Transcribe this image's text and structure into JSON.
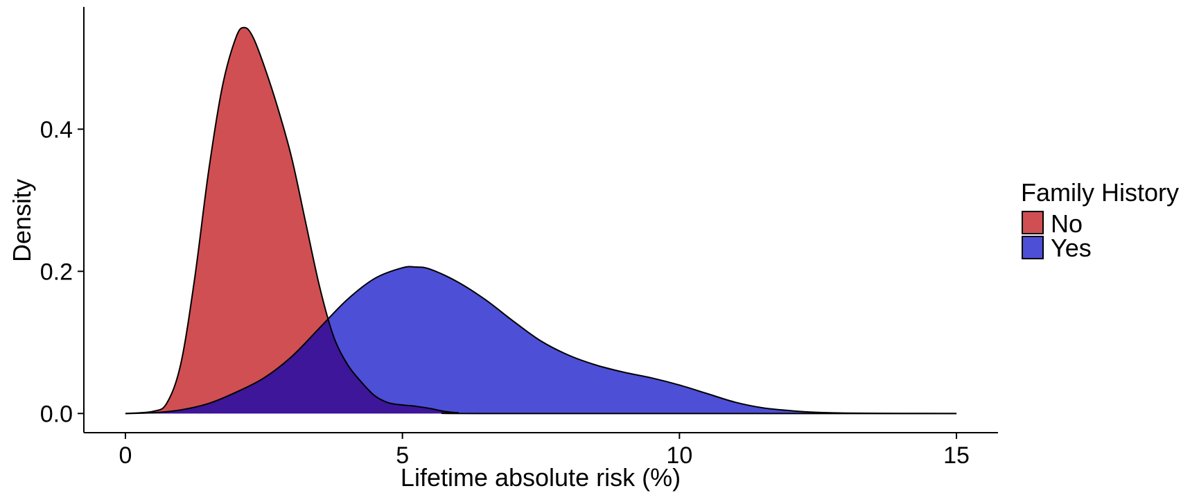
{
  "chart_data": {
    "type": "area",
    "title": "",
    "xlabel": "Lifetime absolute risk (%)",
    "ylabel": "Density",
    "xlim": [
      -0.75,
      15.75
    ],
    "ylim": [
      -0.027,
      0.572
    ],
    "x_ticks": [
      0,
      5,
      10,
      15
    ],
    "x_tick_labels": [
      "0",
      "5",
      "10",
      "15"
    ],
    "y_ticks": [
      0.0,
      0.2,
      0.4
    ],
    "y_tick_labels": [
      "0.0",
      "0.2",
      "0.4"
    ],
    "grid": false,
    "legend": {
      "title": "Family History",
      "placement": "right",
      "entries": [
        "No",
        "Yes"
      ]
    },
    "overlap_color": "#3d1699",
    "series": [
      {
        "name": "No",
        "color": "#d04f52",
        "points": [
          [
            0,
            0
          ],
          [
            0.5,
            0.003
          ],
          [
            0.75,
            0.015
          ],
          [
            1.0,
            0.07
          ],
          [
            1.25,
            0.19
          ],
          [
            1.5,
            0.34
          ],
          [
            1.75,
            0.46
          ],
          [
            2.0,
            0.53
          ],
          [
            2.15,
            0.543
          ],
          [
            2.3,
            0.53
          ],
          [
            2.5,
            0.49
          ],
          [
            2.75,
            0.43
          ],
          [
            3.0,
            0.36
          ],
          [
            3.25,
            0.27
          ],
          [
            3.5,
            0.18
          ],
          [
            3.75,
            0.11
          ],
          [
            4.0,
            0.07
          ],
          [
            4.25,
            0.045
          ],
          [
            4.5,
            0.025
          ],
          [
            4.75,
            0.015
          ],
          [
            5.0,
            0.012
          ],
          [
            5.25,
            0.01
          ],
          [
            5.5,
            0.007
          ],
          [
            5.75,
            0.003
          ],
          [
            6.0,
            0.001
          ],
          [
            6.5,
            0
          ],
          [
            15,
            0
          ]
        ]
      },
      {
        "name": "Yes",
        "color": "#4d4fd6",
        "points": [
          [
            0,
            0
          ],
          [
            0.5,
            0.001
          ],
          [
            1.0,
            0.005
          ],
          [
            1.5,
            0.014
          ],
          [
            2.0,
            0.03
          ],
          [
            2.5,
            0.05
          ],
          [
            3.0,
            0.08
          ],
          [
            3.5,
            0.12
          ],
          [
            4.0,
            0.16
          ],
          [
            4.5,
            0.19
          ],
          [
            5.0,
            0.205
          ],
          [
            5.25,
            0.206
          ],
          [
            5.5,
            0.203
          ],
          [
            6.0,
            0.185
          ],
          [
            6.5,
            0.16
          ],
          [
            7.0,
            0.13
          ],
          [
            7.5,
            0.102
          ],
          [
            8.0,
            0.082
          ],
          [
            8.5,
            0.068
          ],
          [
            9.0,
            0.058
          ],
          [
            9.5,
            0.05
          ],
          [
            10.0,
            0.04
          ],
          [
            10.5,
            0.028
          ],
          [
            11.0,
            0.016
          ],
          [
            11.5,
            0.008
          ],
          [
            12.0,
            0.004
          ],
          [
            12.5,
            0.0015
          ],
          [
            13.0,
            0.0006
          ],
          [
            14.0,
            0.0001
          ],
          [
            15.0,
            0
          ]
        ]
      }
    ]
  }
}
